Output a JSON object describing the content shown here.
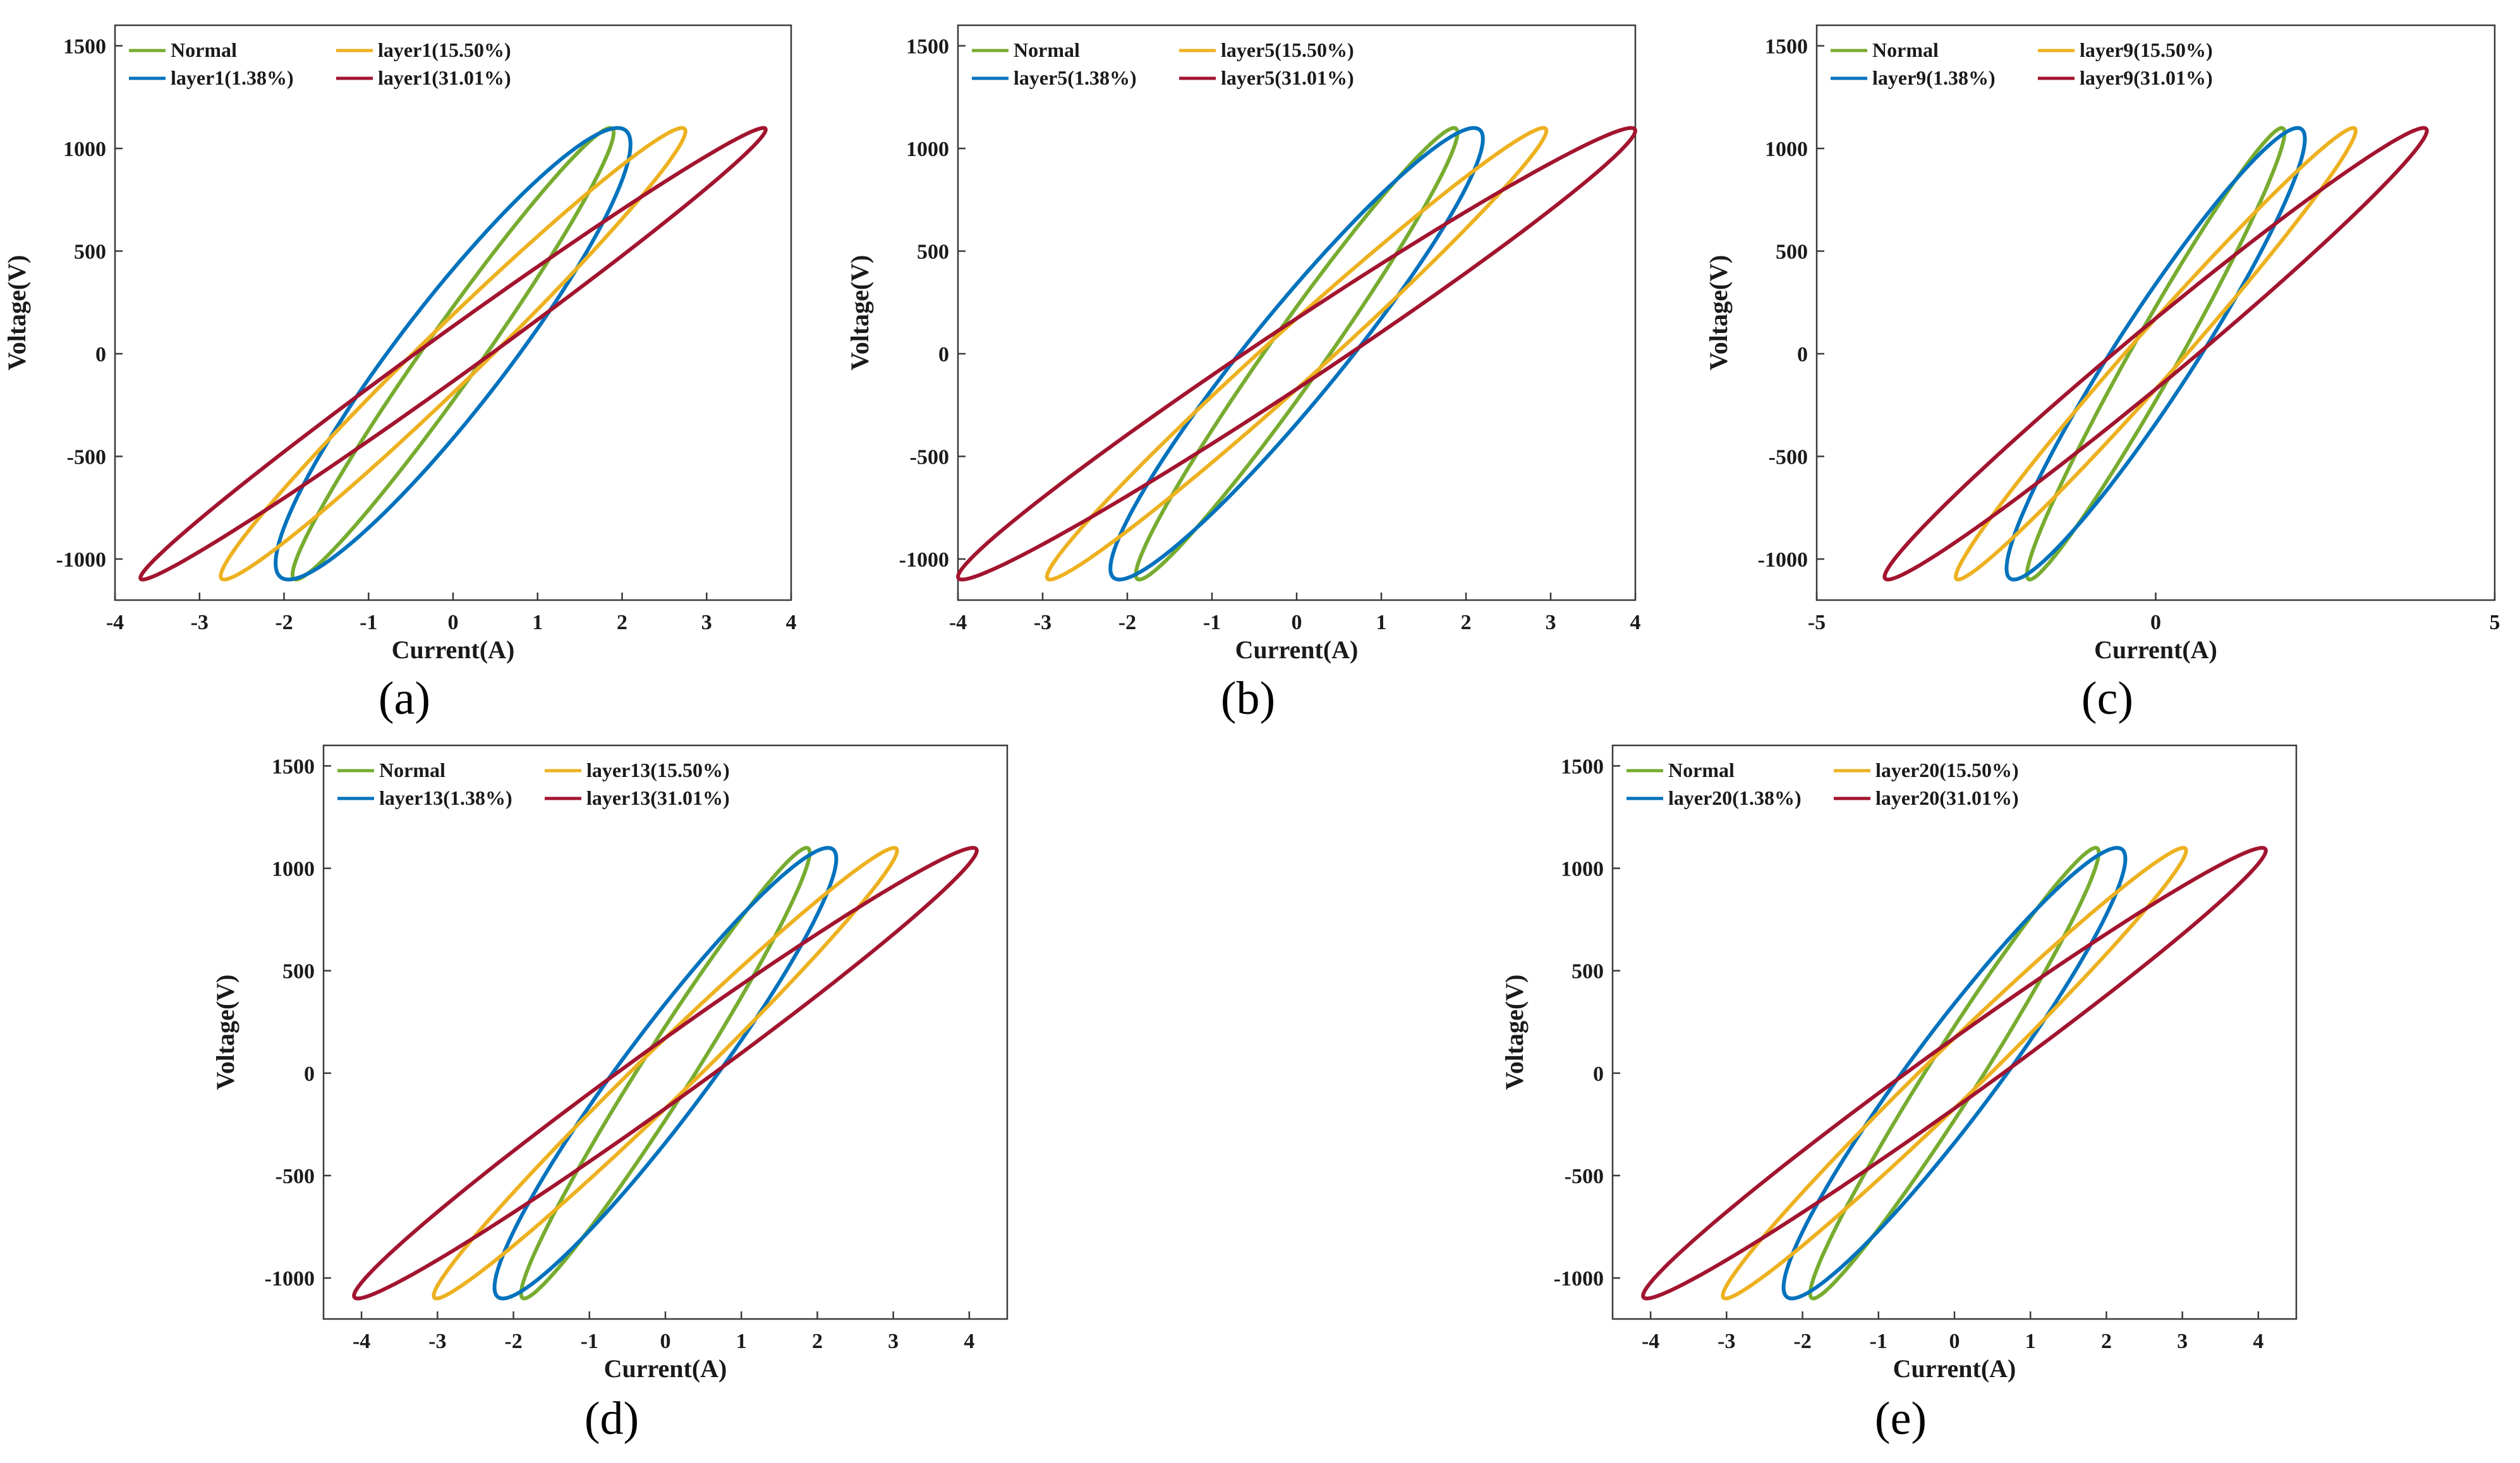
{
  "figure": {
    "description_labels": [
      "(a)",
      "(b)",
      "(c)",
      "(d)",
      "(e)"
    ]
  },
  "chart_data": [
    {
      "type": "line",
      "panel_label": "(a)",
      "xlabel": "Current(A)",
      "ylabel": "Voltage(V)",
      "xlim": [
        -4,
        4
      ],
      "ylim": [
        -1200,
        1600
      ],
      "xticks": [
        -4,
        -3,
        -2,
        -1,
        0,
        1,
        2,
        3,
        4
      ],
      "yticks": [
        -1000,
        -500,
        0,
        500,
        1000,
        1500
      ],
      "legend_position": "top-left",
      "series": [
        {
          "name": "Normal",
          "color": "#77ac30",
          "peak_current": 1.9,
          "peak_voltage": 1100,
          "phase_deg": 12
        },
        {
          "name": "layer1(1.38%)",
          "color": "#0072bd",
          "peak_current": 2.1,
          "peak_voltage": 1100,
          "phase_deg": 22
        },
        {
          "name": "layer1(15.50%)",
          "color": "#edb120",
          "peak_current": 2.75,
          "peak_voltage": 1100,
          "phase_deg": 10
        },
        {
          "name": "layer1(31.01%)",
          "color": "#a2142f",
          "peak_current": 3.7,
          "peak_voltage": 1100,
          "phase_deg": 7
        }
      ]
    },
    {
      "type": "line",
      "panel_label": "(b)",
      "xlabel": "Current(A)",
      "ylabel": "Voltage(V)",
      "xlim": [
        -4,
        4
      ],
      "ylim": [
        -1200,
        1600
      ],
      "xticks": [
        -4,
        -3,
        -2,
        -1,
        0,
        1,
        2,
        3,
        4
      ],
      "yticks": [
        -1000,
        -500,
        0,
        500,
        1000,
        1500
      ],
      "legend_position": "top-left",
      "series": [
        {
          "name": "Normal",
          "color": "#77ac30",
          "peak_current": 1.9,
          "peak_voltage": 1100,
          "phase_deg": 12
        },
        {
          "name": "layer5(1.38%)",
          "color": "#0072bd",
          "peak_current": 2.2,
          "peak_voltage": 1100,
          "phase_deg": 18
        },
        {
          "name": "layer5(15.50%)",
          "color": "#edb120",
          "peak_current": 2.95,
          "peak_voltage": 1100,
          "phase_deg": 9
        },
        {
          "name": "layer5(31.01%)",
          "color": "#a2142f",
          "peak_current": 4.0,
          "peak_voltage": 1100,
          "phase_deg": 9
        }
      ]
    },
    {
      "type": "line",
      "panel_label": "(c)",
      "xlabel": "Current(A)",
      "ylabel": "Voltage(V)",
      "xlim": [
        -5,
        5
      ],
      "ylim": [
        -1200,
        1600
      ],
      "xticks": [
        -5,
        0,
        5
      ],
      "yticks": [
        -1000,
        -500,
        0,
        500,
        1000,
        1500
      ],
      "legend_position": "top-left",
      "series": [
        {
          "name": "Normal",
          "color": "#77ac30",
          "peak_current": 1.9,
          "peak_voltage": 1100,
          "phase_deg": 12
        },
        {
          "name": "layer9(1.38%)",
          "color": "#0072bd",
          "peak_current": 2.2,
          "peak_voltage": 1100,
          "phase_deg": 18
        },
        {
          "name": "layer9(15.50%)",
          "color": "#edb120",
          "peak_current": 2.95,
          "peak_voltage": 1100,
          "phase_deg": 9
        },
        {
          "name": "layer9(31.01%)",
          "color": "#a2142f",
          "peak_current": 4.0,
          "peak_voltage": 1100,
          "phase_deg": 9
        }
      ]
    },
    {
      "type": "line",
      "panel_label": "(d)",
      "xlabel": "Current(A)",
      "ylabel": "Voltage(V)",
      "xlim": [
        -4.5,
        4.5
      ],
      "ylim": [
        -1200,
        1600
      ],
      "xticks": [
        -4,
        -3,
        -2,
        -1,
        0,
        1,
        2,
        3,
        4
      ],
      "yticks": [
        -1000,
        -500,
        0,
        500,
        1000,
        1500
      ],
      "legend_position": "top-left",
      "series": [
        {
          "name": "Normal",
          "color": "#77ac30",
          "peak_current": 1.9,
          "peak_voltage": 1100,
          "phase_deg": 12
        },
        {
          "name": "layer13(1.38%)",
          "color": "#0072bd",
          "peak_current": 2.25,
          "peak_voltage": 1100,
          "phase_deg": 18
        },
        {
          "name": "layer13(15.50%)",
          "color": "#edb120",
          "peak_current": 3.05,
          "peak_voltage": 1100,
          "phase_deg": 9
        },
        {
          "name": "layer13(31.01%)",
          "color": "#a2142f",
          "peak_current": 4.1,
          "peak_voltage": 1100,
          "phase_deg": 9
        }
      ]
    },
    {
      "type": "line",
      "panel_label": "(e)",
      "xlabel": "Current(A)",
      "ylabel": "Voltage(V)",
      "xlim": [
        -4.5,
        4.5
      ],
      "ylim": [
        -1200,
        1600
      ],
      "xticks": [
        -4,
        -3,
        -2,
        -1,
        0,
        1,
        2,
        3,
        4
      ],
      "yticks": [
        -1000,
        -500,
        0,
        500,
        1000,
        1500
      ],
      "legend_position": "top-left",
      "series": [
        {
          "name": "Normal",
          "color": "#77ac30",
          "peak_current": 1.9,
          "peak_voltage": 1100,
          "phase_deg": 12
        },
        {
          "name": "layer20(1.38%)",
          "color": "#0072bd",
          "peak_current": 2.25,
          "peak_voltage": 1100,
          "phase_deg": 18
        },
        {
          "name": "layer20(15.50%)",
          "color": "#edb120",
          "peak_current": 3.05,
          "peak_voltage": 1100,
          "phase_deg": 9
        },
        {
          "name": "layer20(31.01%)",
          "color": "#a2142f",
          "peak_current": 4.1,
          "peak_voltage": 1100,
          "phase_deg": 9
        }
      ]
    }
  ]
}
